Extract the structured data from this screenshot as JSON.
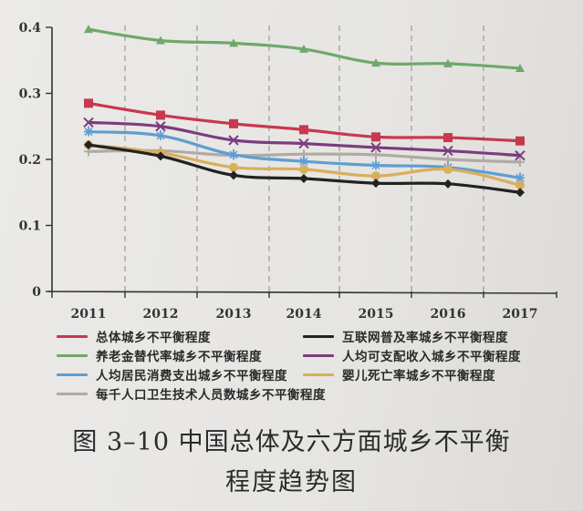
{
  "chart_data": {
    "type": "line",
    "title": "图 3-10 中国总体及六方面城乡不平衡程度趋势图",
    "xlabel": "",
    "ylabel": "",
    "categories": [
      "2011",
      "2012",
      "2013",
      "2014",
      "2015",
      "2016",
      "2017"
    ],
    "ylim": [
      0,
      0.4
    ],
    "yticks": [
      "0",
      "0.1",
      "0.2",
      "0.3",
      "0.4"
    ],
    "grid": "vertical dashed lines between categories",
    "legend_position": "bottom",
    "series": [
      {
        "name": "总体城乡不平衡程度",
        "color": "#c8384e",
        "marker": "square",
        "values": [
          0.285,
          0.267,
          0.254,
          0.245,
          0.234,
          0.233,
          0.228
        ]
      },
      {
        "name": "互联网普及率城乡不平衡程度",
        "color": "#222222",
        "marker": "diamond",
        "values": [
          0.222,
          0.205,
          0.176,
          0.171,
          0.164,
          0.163,
          0.15
        ]
      },
      {
        "name": "养老金替代率城乡不平衡程度",
        "color": "#6fa86a",
        "marker": "triangle",
        "values": [
          0.397,
          0.38,
          0.376,
          0.367,
          0.346,
          0.345,
          0.338
        ]
      },
      {
        "name": "人均可支配收入城乡不平衡程度",
        "color": "#7a3d7e",
        "marker": "x",
        "values": [
          0.256,
          0.25,
          0.229,
          0.224,
          0.218,
          0.213,
          0.206
        ]
      },
      {
        "name": "人均居民消费支出城乡不平衡程度",
        "color": "#5e9ed1",
        "marker": "star",
        "values": [
          0.242,
          0.236,
          0.207,
          0.197,
          0.191,
          0.188,
          0.172
        ]
      },
      {
        "name": "婴儿死亡率城乡不平衡程度",
        "color": "#d9ae5c",
        "marker": "circle",
        "values": [
          0.222,
          0.21,
          0.188,
          0.185,
          0.175,
          0.185,
          0.161
        ]
      },
      {
        "name": "每千人口卫生技术人员数城乡不平衡程度",
        "color": "#b0aaa4",
        "marker": "plus",
        "values": [
          0.212,
          0.213,
          0.206,
          0.208,
          0.207,
          0.2,
          0.196
        ]
      }
    ]
  },
  "caption": {
    "line1": "图 3–10  中国总体及六方面城乡不平衡",
    "line2": "程度趋势图"
  }
}
